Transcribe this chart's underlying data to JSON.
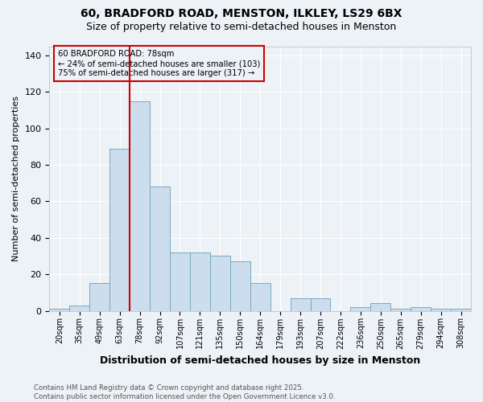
{
  "title1": "60, BRADFORD ROAD, MENSTON, ILKLEY, LS29 6BX",
  "title2": "Size of property relative to semi-detached houses in Menston",
  "xlabel": "Distribution of semi-detached houses by size in Menston",
  "ylabel": "Number of semi-detached properties",
  "bins": [
    "20sqm",
    "35sqm",
    "49sqm",
    "63sqm",
    "78sqm",
    "92sqm",
    "107sqm",
    "121sqm",
    "135sqm",
    "150sqm",
    "164sqm",
    "179sqm",
    "193sqm",
    "207sqm",
    "222sqm",
    "236sqm",
    "250sqm",
    "265sqm",
    "279sqm",
    "294sqm",
    "308sqm"
  ],
  "values": [
    1,
    3,
    15,
    89,
    115,
    68,
    32,
    32,
    30,
    27,
    15,
    0,
    7,
    7,
    0,
    2,
    4,
    1,
    2,
    1,
    1
  ],
  "bar_color": "#ccdded",
  "bar_edge_color": "#7aaabf",
  "vline_bin_index": 4,
  "annotation_line1": "60 BRADFORD ROAD: 78sqm",
  "annotation_line2": "← 24% of semi-detached houses are smaller (103)",
  "annotation_line3": "75% of semi-detached houses are larger (317) →",
  "box_color": "#cc0000",
  "ylim": [
    0,
    145
  ],
  "yticks": [
    0,
    20,
    40,
    60,
    80,
    100,
    120,
    140
  ],
  "footer": "Contains HM Land Registry data © Crown copyright and database right 2025.\nContains public sector information licensed under the Open Government Licence v3.0.",
  "bg_color": "#edf2f7",
  "grid_color": "#ffffff",
  "title_fontsize": 10,
  "subtitle_fontsize": 9
}
